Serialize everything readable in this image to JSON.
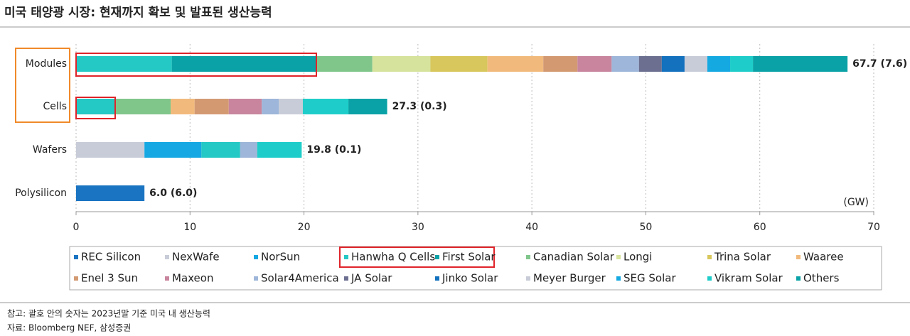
{
  "chart_data": {
    "type": "stacked-bar-horizontal",
    "title": "미국 태양광 시장: 현재까지 확보 및 발표된 생산능력",
    "categories": [
      "Modules",
      "Cells",
      "Wafers",
      "Polysilicon"
    ],
    "series": [
      {
        "name": "REC Silicon",
        "color": "#1a74c2",
        "values": [
          null,
          null,
          null,
          6.0
        ]
      },
      {
        "name": "NexWafe",
        "color": "#c8ccd8",
        "values": [
          null,
          null,
          6.0,
          null
        ]
      },
      {
        "name": "NorSun",
        "color": "#16a8e2",
        "values": [
          null,
          null,
          5.0,
          null
        ]
      },
      {
        "name": "Hanwha Q Cells",
        "color": "#24c8c4",
        "values": [
          8.4,
          3.4,
          3.4,
          null
        ]
      },
      {
        "name": "First Solar",
        "color": "#0ba2a7",
        "values": [
          12.7,
          null,
          null,
          null
        ]
      },
      {
        "name": "Canadian Solar",
        "color": "#80c68b",
        "values": [
          4.9,
          4.9,
          null,
          null
        ]
      },
      {
        "name": "Longi",
        "color": "#d6e39c",
        "values": [
          5.1,
          null,
          null,
          null
        ]
      },
      {
        "name": "Trina Solar",
        "color": "#d8c75c",
        "values": [
          5.0,
          null,
          null,
          null
        ]
      },
      {
        "name": "Waaree",
        "color": "#f1ba7c",
        "values": [
          4.9,
          2.1,
          null,
          null
        ]
      },
      {
        "name": "Enel 3 Sun",
        "color": "#d39a72",
        "values": [
          3.0,
          3.0,
          null,
          null
        ]
      },
      {
        "name": "Maxeon",
        "color": "#c8859d",
        "values": [
          3.0,
          2.9,
          null,
          null
        ]
      },
      {
        "name": "Solar4America",
        "color": "#9db6d9",
        "values": [
          2.4,
          1.5,
          1.5,
          null
        ]
      },
      {
        "name": "JA Solar",
        "color": "#6c6f90",
        "values": [
          2.0,
          null,
          null,
          null
        ]
      },
      {
        "name": "Jinko Solar",
        "color": "#1371be",
        "values": [
          2.0,
          null,
          null,
          null
        ]
      },
      {
        "name": "Meyer Burger",
        "color": "#c8ccd8",
        "values": [
          2.0,
          2.1,
          null,
          null
        ]
      },
      {
        "name": "SEG Solar",
        "color": "#15a9e2",
        "values": [
          2.0,
          null,
          null,
          null
        ]
      },
      {
        "name": "Vikram Solar",
        "color": "#1ecdc9",
        "values": [
          2.0,
          4.0,
          3.9,
          null
        ]
      },
      {
        "name": "Others",
        "color": "#0aa2a6",
        "values": [
          8.3,
          3.4,
          null,
          null
        ]
      }
    ],
    "totals": [
      67.7,
      27.3,
      19.8,
      6.0
    ],
    "total_labels": [
      "67.7 (7.6)",
      "27.3 (0.3)",
      "19.8 (0.1)",
      "6.0 (6.0)"
    ],
    "unit_label": "(GW)",
    "xlim": [
      0,
      70
    ],
    "xticks": [
      0,
      10,
      20,
      30,
      40,
      50,
      60,
      70
    ],
    "grid": true,
    "notes": [
      "참고: 괄호 안의 숫자는 2023년말 기준 미국 내 생산능력",
      "자료: Bloomberg NEF, 삼성증권"
    ]
  }
}
